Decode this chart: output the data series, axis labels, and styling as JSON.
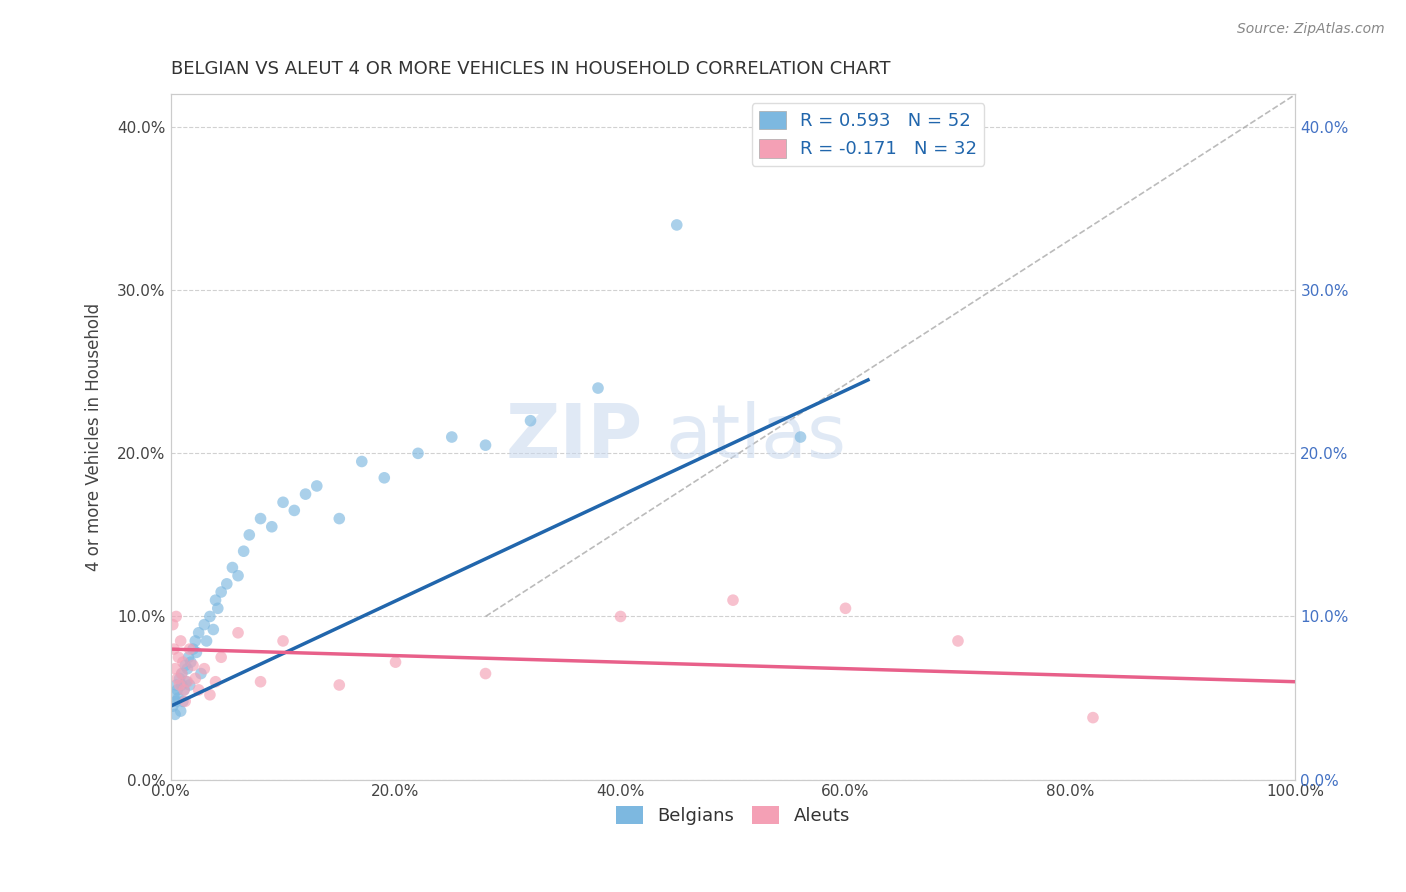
{
  "title": "BELGIAN VS ALEUT 4 OR MORE VEHICLES IN HOUSEHOLD CORRELATION CHART",
  "source": "Source: ZipAtlas.com",
  "ylabel_label": "4 or more Vehicles in Household",
  "x_tick_labels": [
    "0.0%",
    "20.0%",
    "40.0%",
    "60.0%",
    "80.0%",
    "100.0%"
  ],
  "y_tick_labels_left": [
    "0.0%",
    "10.0%",
    "20.0%",
    "30.0%",
    "40.0%"
  ],
  "y_tick_labels_right": [
    "0.0%",
    "10.0%",
    "20.0%",
    "30.0%",
    "40.0%"
  ],
  "x_range": [
    0.0,
    1.0
  ],
  "y_range": [
    0.0,
    0.42
  ],
  "blue_color": "#7db8e0",
  "blue_line_color": "#2166ac",
  "pink_color": "#f4a0b5",
  "pink_line_color": "#e8608a",
  "legend_blue_label": "R = 0.593   N = 52",
  "legend_pink_label": "R = -0.171   N = 32",
  "legend_belgians": "Belgians",
  "legend_aleuts": "Aleuts",
  "r_blue": 0.593,
  "r_pink": -0.171,
  "blue_scatter_x": [
    0.002,
    0.003,
    0.004,
    0.005,
    0.005,
    0.006,
    0.007,
    0.008,
    0.009,
    0.01,
    0.01,
    0.011,
    0.012,
    0.013,
    0.014,
    0.015,
    0.016,
    0.017,
    0.018,
    0.02,
    0.022,
    0.023,
    0.025,
    0.027,
    0.03,
    0.032,
    0.035,
    0.038,
    0.04,
    0.042,
    0.045,
    0.05,
    0.055,
    0.06,
    0.065,
    0.07,
    0.08,
    0.09,
    0.1,
    0.11,
    0.12,
    0.13,
    0.15,
    0.17,
    0.19,
    0.22,
    0.25,
    0.28,
    0.32,
    0.38,
    0.45,
    0.56
  ],
  "blue_scatter_y": [
    0.045,
    0.052,
    0.04,
    0.048,
    0.058,
    0.055,
    0.05,
    0.062,
    0.042,
    0.058,
    0.065,
    0.048,
    0.055,
    0.07,
    0.06,
    0.068,
    0.075,
    0.058,
    0.072,
    0.08,
    0.085,
    0.078,
    0.09,
    0.065,
    0.095,
    0.085,
    0.1,
    0.092,
    0.11,
    0.105,
    0.115,
    0.12,
    0.13,
    0.125,
    0.14,
    0.15,
    0.16,
    0.155,
    0.17,
    0.165,
    0.175,
    0.18,
    0.16,
    0.195,
    0.185,
    0.2,
    0.21,
    0.205,
    0.22,
    0.24,
    0.34,
    0.21
  ],
  "pink_scatter_x": [
    0.002,
    0.003,
    0.004,
    0.005,
    0.006,
    0.007,
    0.008,
    0.009,
    0.01,
    0.011,
    0.012,
    0.013,
    0.015,
    0.017,
    0.02,
    0.022,
    0.025,
    0.03,
    0.035,
    0.04,
    0.045,
    0.06,
    0.08,
    0.1,
    0.15,
    0.2,
    0.28,
    0.4,
    0.5,
    0.6,
    0.7,
    0.82
  ],
  "pink_scatter_y": [
    0.095,
    0.08,
    0.068,
    0.1,
    0.062,
    0.075,
    0.058,
    0.085,
    0.065,
    0.072,
    0.055,
    0.048,
    0.06,
    0.08,
    0.07,
    0.062,
    0.055,
    0.068,
    0.052,
    0.06,
    0.075,
    0.09,
    0.06,
    0.085,
    0.058,
    0.072,
    0.065,
    0.1,
    0.11,
    0.105,
    0.085,
    0.038
  ],
  "blue_trendline_x": [
    0.0,
    0.62
  ],
  "blue_trendline_y": [
    0.045,
    0.245
  ],
  "pink_trendline_x": [
    0.0,
    1.0
  ],
  "pink_trendline_y": [
    0.08,
    0.06
  ],
  "ref_line_x": [
    0.28,
    1.0
  ],
  "ref_line_y": [
    0.1,
    0.42
  ],
  "title_fontsize": 13,
  "tick_fontsize": 11,
  "label_fontsize": 12,
  "marker_size": 70,
  "background_color": "#ffffff",
  "grid_color": "#cccccc"
}
